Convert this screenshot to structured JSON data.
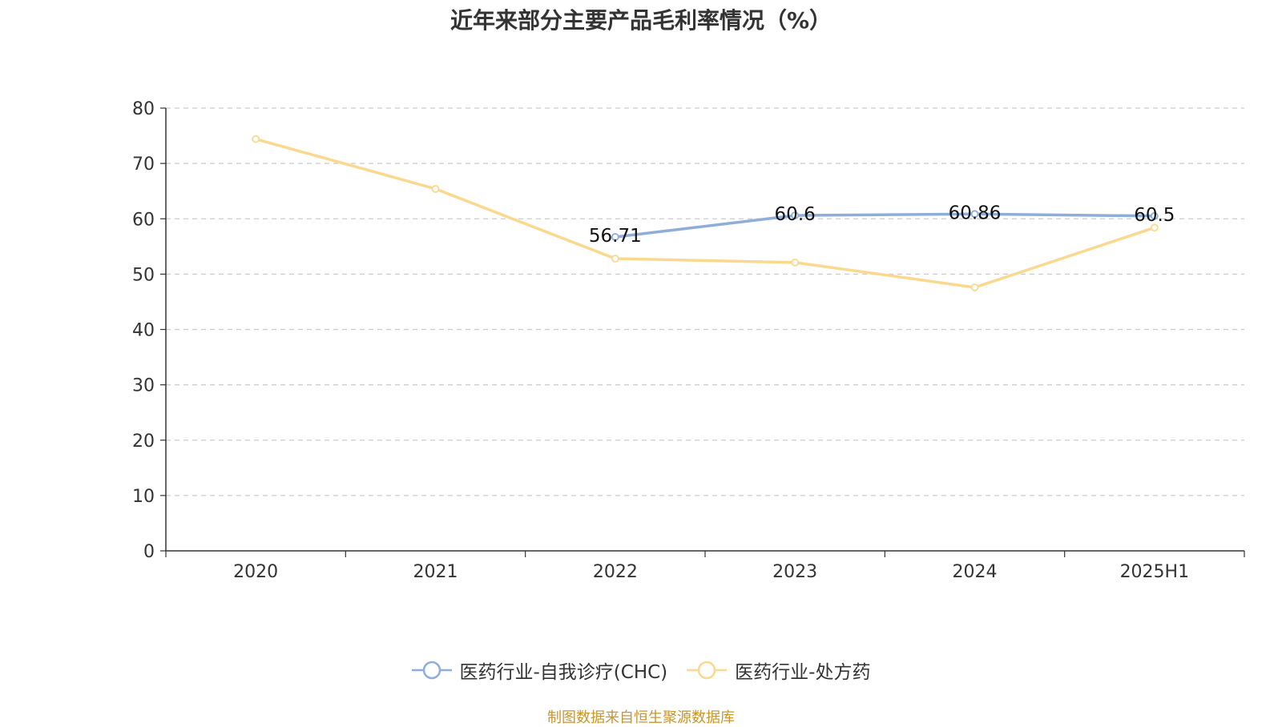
{
  "chart_data": {
    "type": "line",
    "title": "近年来部分主要产品毛利率情况（%）",
    "categories": [
      "2020",
      "2021",
      "2022",
      "2023",
      "2024",
      "2025H1"
    ],
    "ylim": [
      0,
      80
    ],
    "yticks": [
      0,
      10,
      20,
      30,
      40,
      50,
      60,
      70,
      80
    ],
    "grid": true,
    "legend_position": "bottom",
    "series": [
      {
        "name": "医药行业-自我诊疗(CHC)",
        "color": "#8fadd9",
        "values": [
          null,
          null,
          56.71,
          60.6,
          60.86,
          60.5
        ],
        "data_labels": [
          null,
          null,
          "56.71",
          "60.6",
          "60.86",
          "60.5"
        ]
      },
      {
        "name": "医药行业-处方药",
        "color": "#fad98f",
        "values": [
          74.4,
          65.4,
          52.8,
          52.1,
          47.6,
          58.4
        ],
        "data_labels": [
          null,
          null,
          null,
          null,
          null,
          null
        ]
      }
    ]
  },
  "source_note": "制图数据来自恒生聚源数据库"
}
